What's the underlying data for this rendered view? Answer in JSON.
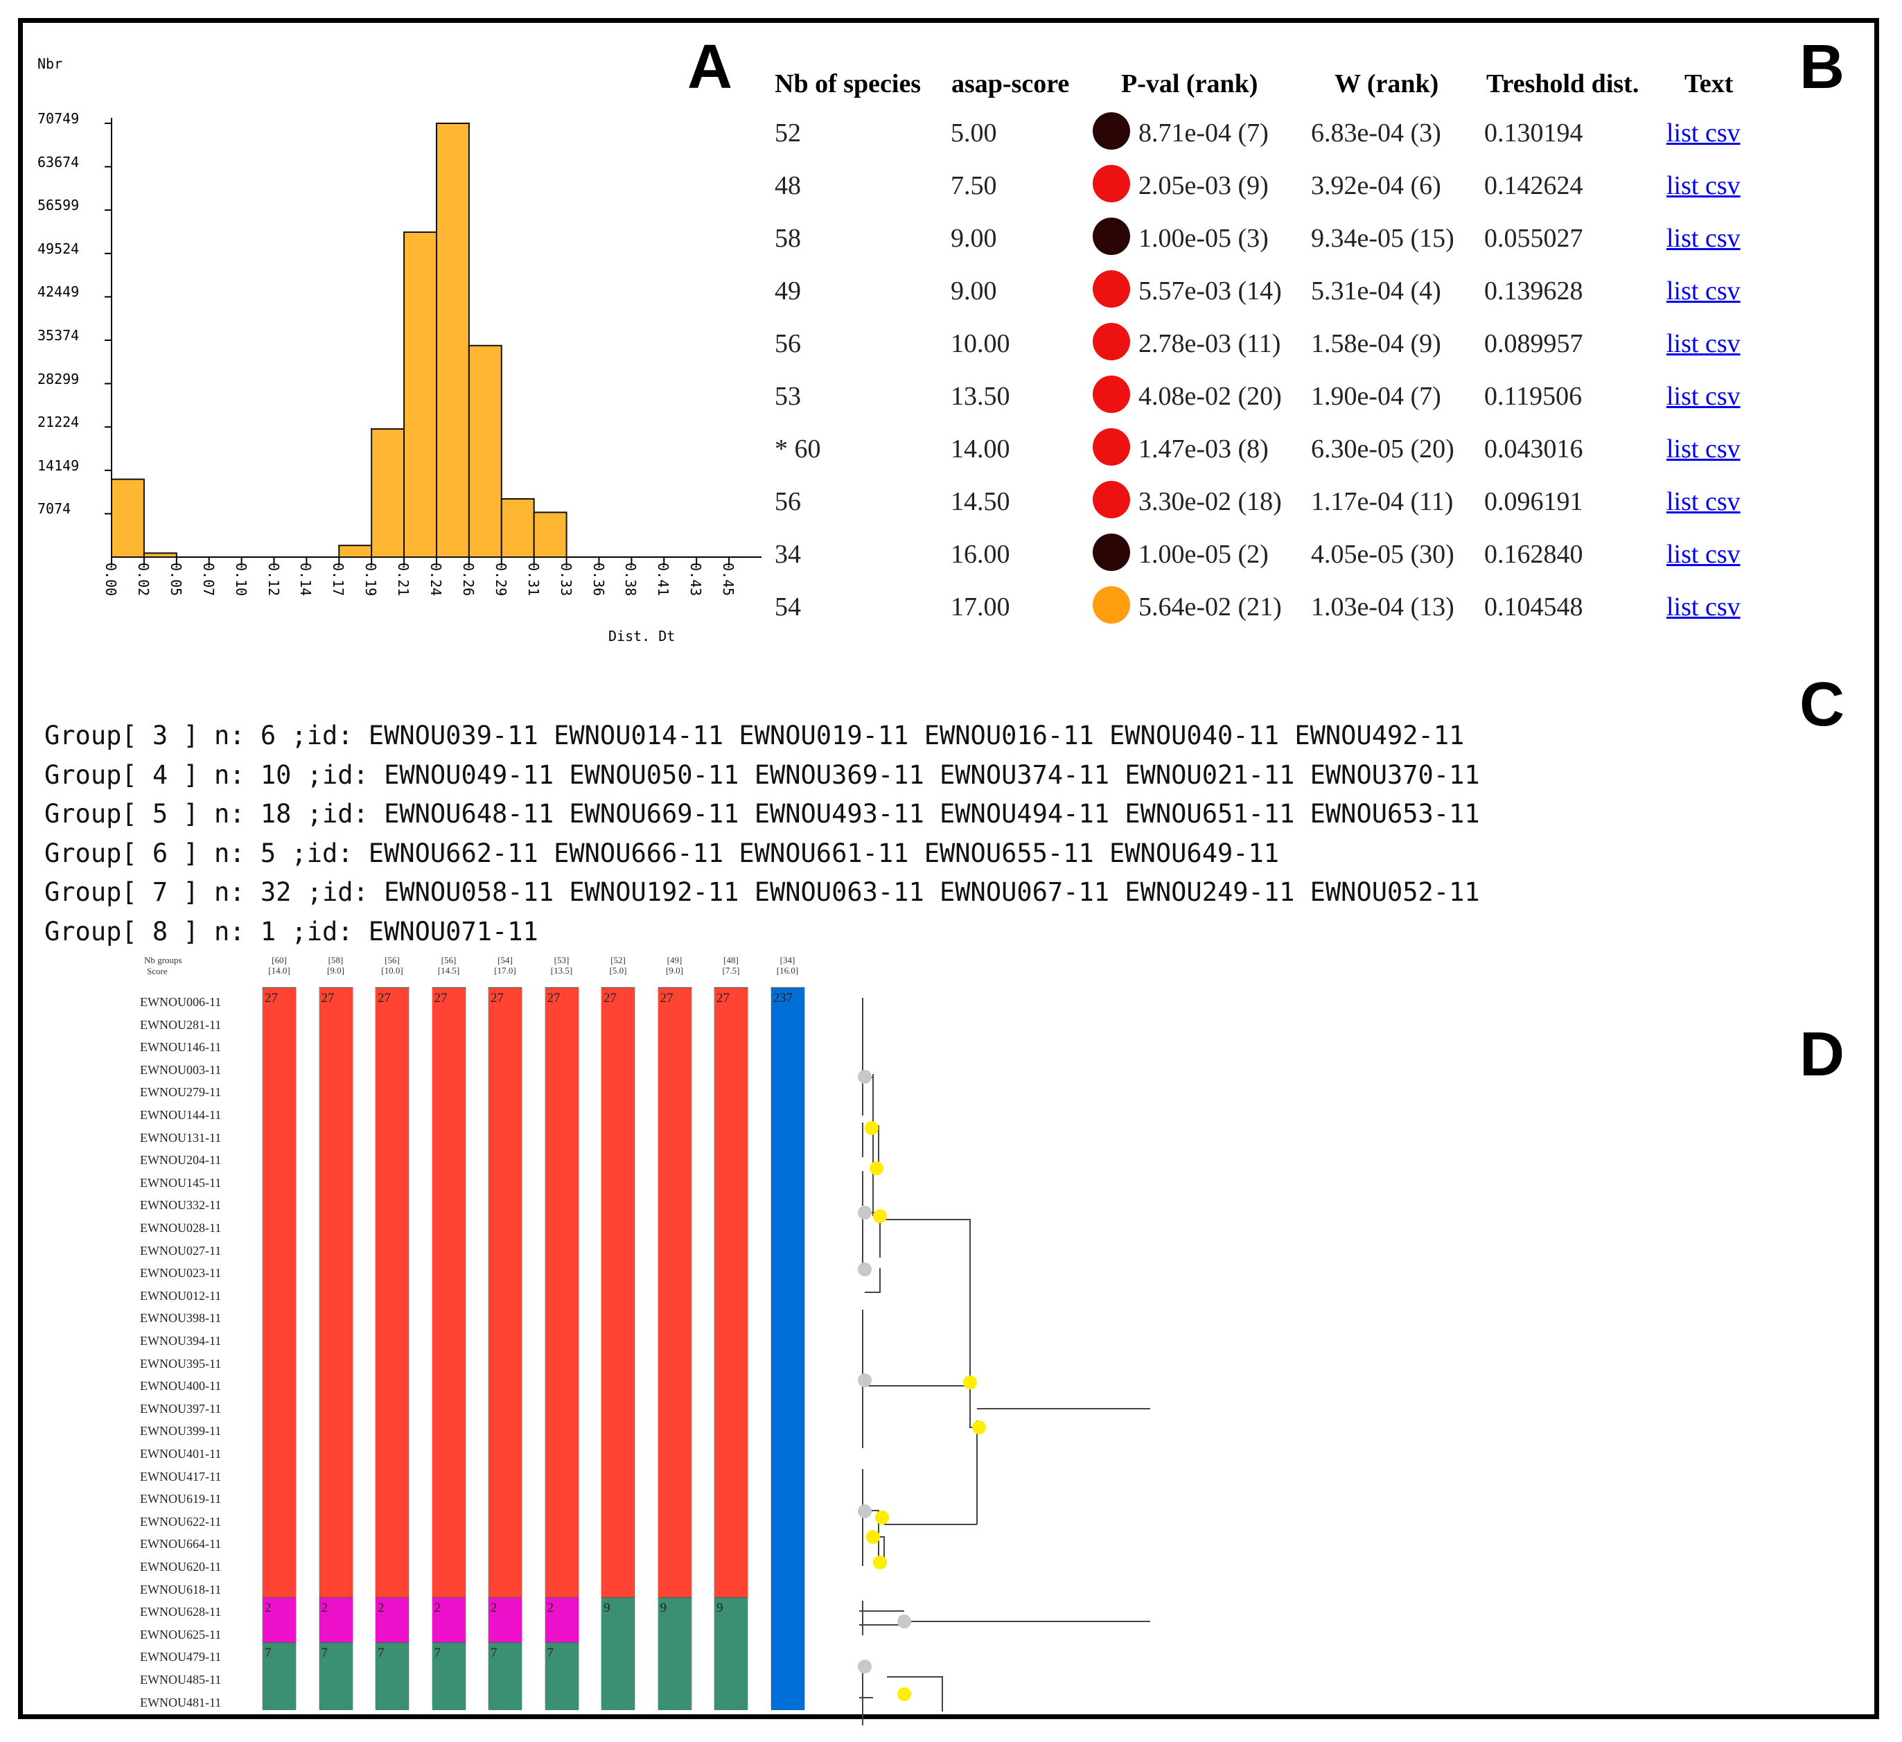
{
  "panel_labels": {
    "a": "A",
    "b": "B",
    "c": "C",
    "d": "D"
  },
  "histogram": {
    "ylabel": "Nbr",
    "xlabel": "Dist. Dt",
    "yticks": [
      "70749",
      "63674",
      "56599",
      "49524",
      "42449",
      "35374",
      "28299",
      "21224",
      "14149",
      "7074"
    ],
    "xticks": [
      "0.00",
      "0.02",
      "0.05",
      "0.07",
      "0.10",
      "0.12",
      "0.14",
      "0.17",
      "0.19",
      "0.21",
      "0.24",
      "0.26",
      "0.29",
      "0.31",
      "0.33",
      "0.36",
      "0.38",
      "0.41",
      "0.43",
      "0.45"
    ],
    "bar_color": "#ffb733"
  },
  "chart_data": {
    "type": "bar",
    "xlabel": "Dist. Dt",
    "ylabel": "Nbr",
    "ylim": [
      0,
      70749
    ],
    "categories": [
      "0.00",
      "0.02",
      "0.05",
      "0.07",
      "0.10",
      "0.12",
      "0.14",
      "0.17",
      "0.19",
      "0.21",
      "0.24",
      "0.26",
      "0.29",
      "0.31",
      "0.33",
      "0.36",
      "0.38",
      "0.41",
      "0.43"
    ],
    "values": [
      12700,
      650,
      0,
      0,
      0,
      0,
      0,
      1900,
      20900,
      53000,
      70749,
      34500,
      9500,
      7300,
      0,
      0,
      0,
      0,
      0
    ],
    "grid": false
  },
  "table": {
    "headers": [
      "Nb of species",
      "asap-score",
      "P-val (rank)",
      "W (rank)",
      "Treshold dist.",
      "Text"
    ],
    "rows": [
      {
        "nb": "52",
        "score": "5.00",
        "color": "#2a0505",
        "pval": "8.71e-04 (7)",
        "w": "6.83e-04 (3)",
        "thr": "0.130194",
        "link": "list csv"
      },
      {
        "nb": "48",
        "score": "7.50",
        "color": "#ee1111",
        "pval": "2.05e-03 (9)",
        "w": "3.92e-04 (6)",
        "thr": "0.142624",
        "link": "list csv"
      },
      {
        "nb": "58",
        "score": "9.00",
        "color": "#2a0505",
        "pval": "1.00e-05 (3)",
        "w": "9.34e-05 (15)",
        "thr": "0.055027",
        "link": "list csv"
      },
      {
        "nb": "49",
        "score": "9.00",
        "color": "#ee1111",
        "pval": "5.57e-03 (14)",
        "w": "5.31e-04 (4)",
        "thr": "0.139628",
        "link": "list csv"
      },
      {
        "nb": "56",
        "score": "10.00",
        "color": "#ee1111",
        "pval": "2.78e-03 (11)",
        "w": "1.58e-04 (9)",
        "thr": "0.089957",
        "link": "list csv"
      },
      {
        "nb": "53",
        "score": "13.50",
        "color": "#ee1111",
        "pval": "4.08e-02 (20)",
        "w": "1.90e-04 (7)",
        "thr": "0.119506",
        "link": "list csv"
      },
      {
        "nb": "* 60",
        "score": "14.00",
        "color": "#ee1111",
        "pval": "1.47e-03 (8)",
        "w": "6.30e-05 (20)",
        "thr": "0.043016",
        "link": "list csv"
      },
      {
        "nb": "56",
        "score": "14.50",
        "color": "#ee1111",
        "pval": "3.30e-02 (18)",
        "w": "1.17e-04 (11)",
        "thr": "0.096191",
        "link": "list csv"
      },
      {
        "nb": "34",
        "score": "16.00",
        "color": "#2a0505",
        "pval": "1.00e-05 (2)",
        "w": "4.05e-05 (30)",
        "thr": "0.162840",
        "link": "list csv"
      },
      {
        "nb": "54",
        "score": "17.00",
        "color": "#ff9e0f",
        "pval": "5.64e-02 (21)",
        "w": "1.03e-04 (13)",
        "thr": "0.104548",
        "link": "list csv"
      }
    ]
  },
  "groups": [
    "Group[ 3 ] n: 6 ;id: EWNOU039-11 EWNOU014-11 EWNOU019-11 EWNOU016-11 EWNOU040-11 EWNOU492-11",
    "Group[ 4 ] n: 10 ;id: EWNOU049-11 EWNOU050-11 EWNOU369-11 EWNOU374-11 EWNOU021-11 EWNOU370-11",
    "Group[ 5 ] n: 18 ;id: EWNOU648-11 EWNOU669-11 EWNOU493-11 EWNOU494-11 EWNOU651-11 EWNOU653-11",
    "Group[ 6 ] n: 5 ;id: EWNOU662-11 EWNOU666-11 EWNOU661-11 EWNOU655-11 EWNOU649-11",
    "Group[ 7 ] n: 32 ;id: EWNOU058-11 EWNOU192-11 EWNOU063-11 EWNOU067-11 EWNOU249-11 EWNOU052-11",
    "Group[ 8 ] n: 1 ;id: EWNOU071-11"
  ],
  "partition": {
    "header_nb": "Nb groups",
    "header_score": "Score",
    "columns": [
      {
        "nb": "[60]",
        "score": "[14.0]"
      },
      {
        "nb": "[58]",
        "score": "[9.0]"
      },
      {
        "nb": "[56]",
        "score": "[10.0]"
      },
      {
        "nb": "[56]",
        "score": "[14.5]"
      },
      {
        "nb": "[54]",
        "score": "[17.0]"
      },
      {
        "nb": "[53]",
        "score": "[13.5]"
      },
      {
        "nb": "[52]",
        "score": "[5.0]"
      },
      {
        "nb": "[49]",
        "score": "[9.0]"
      },
      {
        "nb": "[48]",
        "score": "[7.5]"
      },
      {
        "nb": "[34]",
        "score": "[16.0]"
      }
    ],
    "seg_labels": {
      "red": "27",
      "magenta": "2",
      "green7": "7",
      "green9": "9",
      "blue": "237"
    },
    "colors": {
      "red": "#ff4433",
      "magenta": "#ee11cc",
      "green": "#3a9070",
      "blue": "#0070d8"
    },
    "samples": [
      "EWNOU006-11",
      "EWNOU281-11",
      "EWNOU146-11",
      "EWNOU003-11",
      "EWNOU279-11",
      "EWNOU144-11",
      "EWNOU131-11",
      "EWNOU204-11",
      "EWNOU145-11",
      "EWNOU332-11",
      "EWNOU028-11",
      "EWNOU027-11",
      "EWNOU023-11",
      "EWNOU012-11",
      "EWNOU398-11",
      "EWNOU394-11",
      "EWNOU395-11",
      "EWNOU400-11",
      "EWNOU397-11",
      "EWNOU399-11",
      "EWNOU401-11",
      "EWNOU417-11",
      "EWNOU619-11",
      "EWNOU622-11",
      "EWNOU664-11",
      "EWNOU620-11",
      "EWNOU618-11",
      "EWNOU628-11",
      "EWNOU625-11",
      "EWNOU479-11",
      "EWNOU485-11",
      "EWNOU481-11"
    ]
  }
}
